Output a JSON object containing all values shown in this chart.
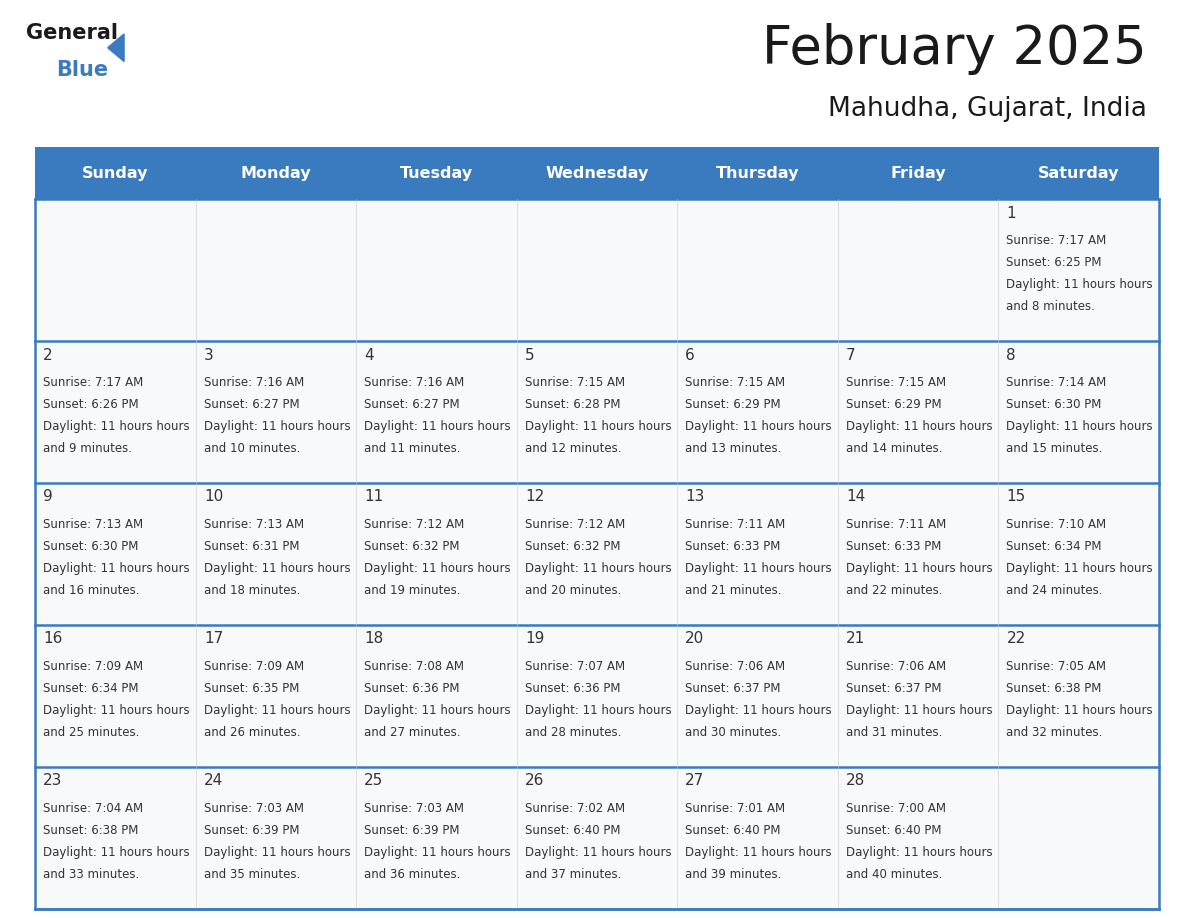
{
  "title": "February 2025",
  "subtitle": "Mahudha, Gujarat, India",
  "days_of_week": [
    "Sunday",
    "Monday",
    "Tuesday",
    "Wednesday",
    "Thursday",
    "Friday",
    "Saturday"
  ],
  "header_bg": "#3a7bbf",
  "header_text": "#ffffff",
  "cell_bg": "#f8f9fa",
  "border_color": "#3a7bbf",
  "text_color": "#333333",
  "title_color": "#1a1a1a",
  "calendar_data": [
    [
      null,
      null,
      null,
      null,
      null,
      null,
      {
        "day": 1,
        "sunrise": "7:17 AM",
        "sunset": "6:25 PM",
        "daylight": "11 hours and 8 minutes"
      }
    ],
    [
      {
        "day": 2,
        "sunrise": "7:17 AM",
        "sunset": "6:26 PM",
        "daylight": "11 hours and 9 minutes"
      },
      {
        "day": 3,
        "sunrise": "7:16 AM",
        "sunset": "6:27 PM",
        "daylight": "11 hours and 10 minutes"
      },
      {
        "day": 4,
        "sunrise": "7:16 AM",
        "sunset": "6:27 PM",
        "daylight": "11 hours and 11 minutes"
      },
      {
        "day": 5,
        "sunrise": "7:15 AM",
        "sunset": "6:28 PM",
        "daylight": "11 hours and 12 minutes"
      },
      {
        "day": 6,
        "sunrise": "7:15 AM",
        "sunset": "6:29 PM",
        "daylight": "11 hours and 13 minutes"
      },
      {
        "day": 7,
        "sunrise": "7:15 AM",
        "sunset": "6:29 PM",
        "daylight": "11 hours and 14 minutes"
      },
      {
        "day": 8,
        "sunrise": "7:14 AM",
        "sunset": "6:30 PM",
        "daylight": "11 hours and 15 minutes"
      }
    ],
    [
      {
        "day": 9,
        "sunrise": "7:13 AM",
        "sunset": "6:30 PM",
        "daylight": "11 hours and 16 minutes"
      },
      {
        "day": 10,
        "sunrise": "7:13 AM",
        "sunset": "6:31 PM",
        "daylight": "11 hours and 18 minutes"
      },
      {
        "day": 11,
        "sunrise": "7:12 AM",
        "sunset": "6:32 PM",
        "daylight": "11 hours and 19 minutes"
      },
      {
        "day": 12,
        "sunrise": "7:12 AM",
        "sunset": "6:32 PM",
        "daylight": "11 hours and 20 minutes"
      },
      {
        "day": 13,
        "sunrise": "7:11 AM",
        "sunset": "6:33 PM",
        "daylight": "11 hours and 21 minutes"
      },
      {
        "day": 14,
        "sunrise": "7:11 AM",
        "sunset": "6:33 PM",
        "daylight": "11 hours and 22 minutes"
      },
      {
        "day": 15,
        "sunrise": "7:10 AM",
        "sunset": "6:34 PM",
        "daylight": "11 hours and 24 minutes"
      }
    ],
    [
      {
        "day": 16,
        "sunrise": "7:09 AM",
        "sunset": "6:34 PM",
        "daylight": "11 hours and 25 minutes"
      },
      {
        "day": 17,
        "sunrise": "7:09 AM",
        "sunset": "6:35 PM",
        "daylight": "11 hours and 26 minutes"
      },
      {
        "day": 18,
        "sunrise": "7:08 AM",
        "sunset": "6:36 PM",
        "daylight": "11 hours and 27 minutes"
      },
      {
        "day": 19,
        "sunrise": "7:07 AM",
        "sunset": "6:36 PM",
        "daylight": "11 hours and 28 minutes"
      },
      {
        "day": 20,
        "sunrise": "7:06 AM",
        "sunset": "6:37 PM",
        "daylight": "11 hours and 30 minutes"
      },
      {
        "day": 21,
        "sunrise": "7:06 AM",
        "sunset": "6:37 PM",
        "daylight": "11 hours and 31 minutes"
      },
      {
        "day": 22,
        "sunrise": "7:05 AM",
        "sunset": "6:38 PM",
        "daylight": "11 hours and 32 minutes"
      }
    ],
    [
      {
        "day": 23,
        "sunrise": "7:04 AM",
        "sunset": "6:38 PM",
        "daylight": "11 hours and 33 minutes"
      },
      {
        "day": 24,
        "sunrise": "7:03 AM",
        "sunset": "6:39 PM",
        "daylight": "11 hours and 35 minutes"
      },
      {
        "day": 25,
        "sunrise": "7:03 AM",
        "sunset": "6:39 PM",
        "daylight": "11 hours and 36 minutes"
      },
      {
        "day": 26,
        "sunrise": "7:02 AM",
        "sunset": "6:40 PM",
        "daylight": "11 hours and 37 minutes"
      },
      {
        "day": 27,
        "sunrise": "7:01 AM",
        "sunset": "6:40 PM",
        "daylight": "11 hours and 39 minutes"
      },
      {
        "day": 28,
        "sunrise": "7:00 AM",
        "sunset": "6:40 PM",
        "daylight": "11 hours and 40 minutes"
      },
      null
    ]
  ]
}
